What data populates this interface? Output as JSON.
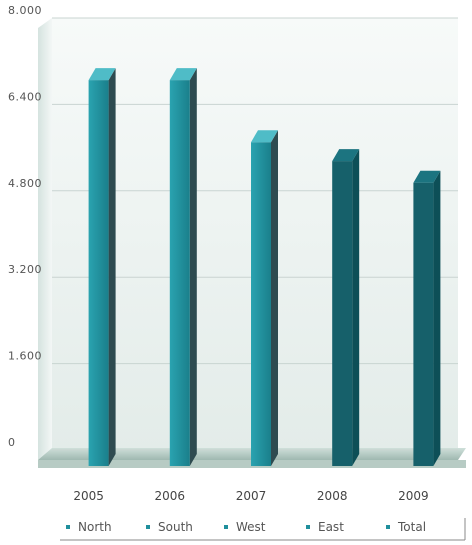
{
  "chart_data": {
    "type": "bar",
    "categories": [
      "2005",
      "2006",
      "2007",
      "2008",
      "2009"
    ],
    "values": [
      6850,
      6850,
      5700,
      5350,
      4950
    ],
    "yticks": [
      "0",
      "1.600",
      "3.200",
      "4.800",
      "6.400",
      "8.000"
    ],
    "ylim": [
      0,
      8000
    ],
    "grid": true,
    "legend_position": "bottom",
    "legend": [
      "North",
      "South",
      "West",
      "East",
      "Total"
    ],
    "bar_color": "#1f8f9c",
    "bar_color_dark": "#16606a"
  }
}
